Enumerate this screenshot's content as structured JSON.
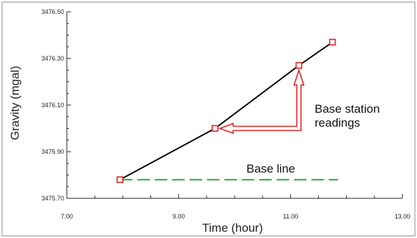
{
  "chart_data": {
    "type": "line",
    "xlabel": "Time (hour)",
    "ylabel": "Gravity (mgal)",
    "xlim": [
      7.0,
      13.0
    ],
    "ylim": [
      3475.7,
      3476.5
    ],
    "x_ticks": [
      "7.00",
      "9.00",
      "11.00",
      "13.00"
    ],
    "y_ticks": [
      "3476.50",
      "3476.30",
      "3476.10",
      "3475.90",
      "3475.70"
    ],
    "x_tick_values": [
      7,
      9,
      11,
      13
    ],
    "y_tick_values": [
      3476.5,
      3476.3,
      3476.1,
      3475.9,
      3475.7
    ],
    "series": [
      {
        "values_x": [
          7.95,
          9.65,
          11.15,
          11.75
        ],
        "values_y": [
          3475.78,
          3476.0,
          3476.27,
          3476.37
        ],
        "color": "#000000",
        "marker_color": "#e02020"
      }
    ],
    "baseline": {
      "y": 3475.78,
      "x_start": 7.95,
      "x_end": 11.85,
      "color": "#22a83a"
    },
    "annotations": {
      "base_station_line1": "Base station",
      "base_station_line2": "readings",
      "base_line": "Base line"
    },
    "arrow_color": "#e02020",
    "grid": false
  }
}
